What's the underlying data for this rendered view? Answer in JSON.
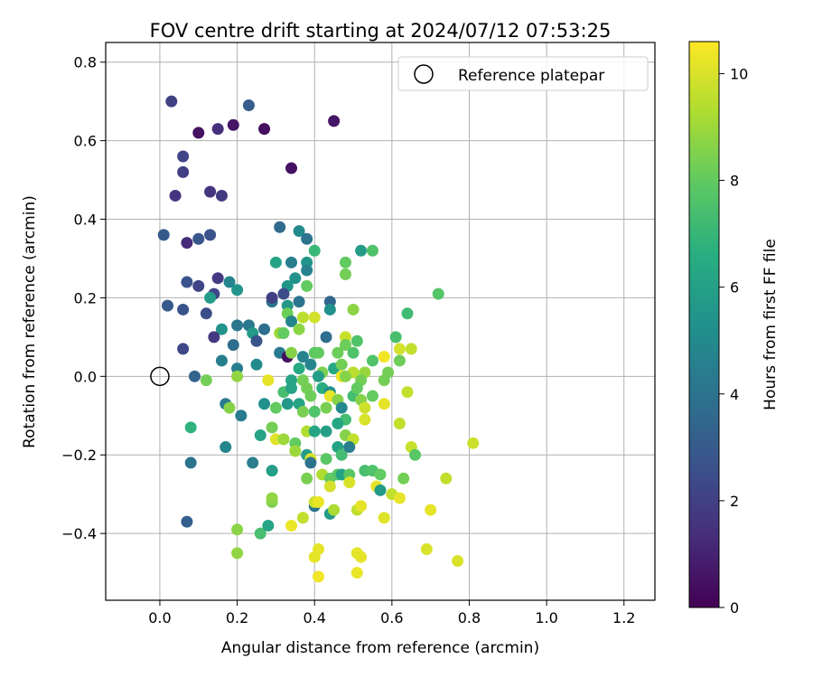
{
  "chart_data": {
    "type": "scatter",
    "title": "FOV centre drift starting at 2024/07/12 07:53:25",
    "xlabel": "Angular distance from reference (arcmin)",
    "ylabel": "Rotation from reference (arcmin)",
    "xlim": [
      -0.14,
      1.28
    ],
    "ylim": [
      -0.57,
      0.85
    ],
    "xticks": [
      "0.0",
      "0.2",
      "0.4",
      "0.6",
      "0.8",
      "1.0",
      "1.2"
    ],
    "xtick_values": [
      0.0,
      0.2,
      0.4,
      0.6,
      0.8,
      1.0,
      1.2
    ],
    "yticks": [
      "−0.4",
      "−0.2",
      "0.0",
      "0.2",
      "0.4",
      "0.6",
      "0.8"
    ],
    "ytick_values": [
      -0.4,
      -0.2,
      0.0,
      0.2,
      0.4,
      0.6,
      0.8
    ],
    "grid": true,
    "legend": {
      "placement": "upper-right",
      "entries": [
        "Reference platepar"
      ]
    },
    "reference_point": {
      "x": 0.0,
      "y": 0.0
    },
    "colorbar": {
      "label": "Hours from first FF file",
      "range": [
        0,
        10.6
      ],
      "ticks": [
        "0",
        "2",
        "4",
        "6",
        "8",
        "10"
      ],
      "tick_values": [
        0,
        2,
        4,
        6,
        8,
        10
      ],
      "colormap": "viridis"
    },
    "series": [
      {
        "points": [
          [
            0.03,
            0.7,
            2.0
          ],
          [
            0.1,
            0.62,
            0.5
          ],
          [
            0.15,
            0.63,
            1.4
          ],
          [
            0.19,
            0.64,
            0.6
          ],
          [
            0.23,
            0.69,
            3.1
          ],
          [
            0.27,
            0.63,
            0.4
          ],
          [
            0.45,
            0.65,
            0.6
          ],
          [
            0.06,
            0.56,
            2.2
          ],
          [
            0.06,
            0.52,
            2.0
          ],
          [
            0.04,
            0.46,
            1.6
          ],
          [
            0.13,
            0.47,
            1.6
          ],
          [
            0.16,
            0.46,
            1.8
          ],
          [
            0.34,
            0.53,
            0.5
          ],
          [
            0.01,
            0.36,
            3.0
          ],
          [
            0.07,
            0.34,
            1.3
          ],
          [
            0.1,
            0.35,
            2.9
          ],
          [
            0.13,
            0.36,
            2.7
          ],
          [
            0.31,
            0.38,
            3.7
          ],
          [
            0.36,
            0.37,
            5.0
          ],
          [
            0.38,
            0.35,
            4.0
          ],
          [
            0.52,
            0.32,
            5.8
          ],
          [
            0.55,
            0.32,
            7.6
          ],
          [
            0.4,
            0.32,
            7.1
          ],
          [
            0.3,
            0.29,
            6.1
          ],
          [
            0.34,
            0.29,
            4.5
          ],
          [
            0.38,
            0.29,
            5.5
          ],
          [
            0.48,
            0.29,
            8.0
          ],
          [
            0.07,
            0.24,
            2.7
          ],
          [
            0.1,
            0.23,
            2.2
          ],
          [
            0.15,
            0.25,
            1.8
          ],
          [
            0.18,
            0.24,
            4.8
          ],
          [
            0.2,
            0.22,
            5.5
          ],
          [
            0.14,
            0.21,
            2.2
          ],
          [
            0.13,
            0.2,
            5.8
          ],
          [
            0.33,
            0.23,
            5.5
          ],
          [
            0.35,
            0.25,
            5.3
          ],
          [
            0.38,
            0.27,
            4.7
          ],
          [
            0.38,
            0.23,
            8.0
          ],
          [
            0.48,
            0.26,
            8.3
          ],
          [
            0.72,
            0.21,
            7.7
          ],
          [
            0.02,
            0.18,
            3.0
          ],
          [
            0.06,
            0.17,
            2.7
          ],
          [
            0.12,
            0.16,
            2.5
          ],
          [
            0.29,
            0.19,
            4.2
          ],
          [
            0.29,
            0.2,
            2.0
          ],
          [
            0.32,
            0.21,
            2.5
          ],
          [
            0.33,
            0.18,
            5.6
          ],
          [
            0.36,
            0.19,
            4.0
          ],
          [
            0.44,
            0.19,
            3.5
          ],
          [
            0.44,
            0.17,
            5.3
          ],
          [
            0.5,
            0.17,
            8.7
          ],
          [
            0.64,
            0.16,
            7.2
          ],
          [
            0.33,
            0.16,
            8.2
          ],
          [
            0.34,
            0.14,
            4.8
          ],
          [
            0.37,
            0.15,
            9.5
          ],
          [
            0.4,
            0.15,
            9.9
          ],
          [
            0.16,
            0.12,
            5.4
          ],
          [
            0.2,
            0.13,
            4.2
          ],
          [
            0.23,
            0.13,
            4.2
          ],
          [
            0.27,
            0.12,
            3.8
          ],
          [
            0.31,
            0.11,
            9.0
          ],
          [
            0.24,
            0.11,
            5.7
          ],
          [
            0.25,
            0.09,
            2.7
          ],
          [
            0.32,
            0.11,
            8.0
          ],
          [
            0.36,
            0.12,
            8.7
          ],
          [
            0.43,
            0.1,
            3.8
          ],
          [
            0.48,
            0.1,
            9.7
          ],
          [
            0.48,
            0.08,
            8.2
          ],
          [
            0.51,
            0.09,
            7.6
          ],
          [
            0.61,
            0.1,
            7.4
          ],
          [
            0.62,
            0.07,
            9.9
          ],
          [
            0.65,
            0.07,
            9.6
          ],
          [
            0.06,
            0.07,
            2.3
          ],
          [
            0.14,
            0.1,
            1.8
          ],
          [
            0.19,
            0.08,
            3.8
          ],
          [
            0.31,
            0.06,
            4.3
          ],
          [
            0.33,
            0.05,
            0.5
          ],
          [
            0.34,
            0.06,
            8.6
          ],
          [
            0.37,
            0.05,
            4.7
          ],
          [
            0.4,
            0.06,
            7.9
          ],
          [
            0.41,
            0.06,
            8.0
          ],
          [
            0.46,
            0.06,
            8.2
          ],
          [
            0.5,
            0.06,
            7.6
          ],
          [
            0.58,
            0.05,
            10.4
          ],
          [
            0.55,
            0.04,
            7.6
          ],
          [
            0.62,
            0.04,
            8.2
          ],
          [
            0.16,
            0.04,
            4.5
          ],
          [
            0.2,
            0.02,
            4.5
          ],
          [
            0.25,
            0.03,
            5.0
          ],
          [
            0.36,
            0.02,
            6.4
          ],
          [
            0.39,
            0.03,
            4.8
          ],
          [
            0.42,
            0.01,
            8.4
          ],
          [
            0.45,
            0.02,
            6.3
          ],
          [
            0.47,
            0.03,
            8.3
          ],
          [
            0.5,
            0.01,
            9.5
          ],
          [
            0.53,
            0.01,
            8.9
          ],
          [
            0.59,
            0.01,
            8.3
          ],
          [
            0.09,
            0.0,
            3.4
          ],
          [
            0.12,
            -0.01,
            8.3
          ],
          [
            0.2,
            0.0,
            8.8
          ],
          [
            0.28,
            -0.01,
            10.2
          ],
          [
            0.34,
            -0.01,
            6.2
          ],
          [
            0.37,
            -0.01,
            8.3
          ],
          [
            0.41,
            0.0,
            5.8
          ],
          [
            0.47,
            0.0,
            10.3
          ],
          [
            0.48,
            0.0,
            8.6
          ],
          [
            0.52,
            -0.01,
            8.3
          ],
          [
            0.58,
            -0.01,
            8.3
          ],
          [
            0.17,
            -0.07,
            4.3
          ],
          [
            0.21,
            -0.1,
            4.4
          ],
          [
            0.18,
            -0.08,
            8.6
          ],
          [
            0.27,
            -0.07,
            5.3
          ],
          [
            0.32,
            -0.04,
            7.4
          ],
          [
            0.34,
            -0.03,
            6.1
          ],
          [
            0.38,
            -0.03,
            8.3
          ],
          [
            0.39,
            -0.05,
            8.2
          ],
          [
            0.42,
            -0.03,
            6.6
          ],
          [
            0.44,
            -0.04,
            5.2
          ],
          [
            0.44,
            -0.05,
            10.2
          ],
          [
            0.46,
            -0.06,
            8.6
          ],
          [
            0.5,
            -0.05,
            7.3
          ],
          [
            0.51,
            -0.03,
            8.0
          ],
          [
            0.52,
            -0.06,
            8.6
          ],
          [
            0.55,
            -0.05,
            8.0
          ],
          [
            0.58,
            -0.07,
            10.2
          ],
          [
            0.64,
            -0.04,
            9.6
          ],
          [
            0.08,
            -0.13,
            6.8
          ],
          [
            0.3,
            -0.08,
            8.0
          ],
          [
            0.33,
            -0.07,
            5.6
          ],
          [
            0.36,
            -0.07,
            6.1
          ],
          [
            0.37,
            -0.09,
            8.4
          ],
          [
            0.4,
            -0.09,
            7.6
          ],
          [
            0.43,
            -0.08,
            8.4
          ],
          [
            0.47,
            -0.08,
            4.9
          ],
          [
            0.48,
            -0.11,
            7.3
          ],
          [
            0.46,
            -0.12,
            6.3
          ],
          [
            0.53,
            -0.08,
            9.8
          ],
          [
            0.53,
            -0.11,
            10.0
          ],
          [
            0.62,
            -0.12,
            9.6
          ],
          [
            0.26,
            -0.15,
            6.1
          ],
          [
            0.29,
            -0.13,
            8.3
          ],
          [
            0.3,
            -0.16,
            10.1
          ],
          [
            0.32,
            -0.16,
            9.0
          ],
          [
            0.35,
            -0.17,
            8.0
          ],
          [
            0.38,
            -0.14,
            9.3
          ],
          [
            0.4,
            -0.14,
            6.2
          ],
          [
            0.43,
            -0.14,
            6.0
          ],
          [
            0.48,
            -0.15,
            8.6
          ],
          [
            0.5,
            -0.16,
            9.6
          ],
          [
            0.08,
            -0.22,
            4.0
          ],
          [
            0.17,
            -0.18,
            4.8
          ],
          [
            0.24,
            -0.22,
            4.5
          ],
          [
            0.29,
            -0.24,
            5.9
          ],
          [
            0.35,
            -0.19,
            9.0
          ],
          [
            0.38,
            -0.2,
            5.8
          ],
          [
            0.39,
            -0.21,
            10.0
          ],
          [
            0.39,
            -0.22,
            4.0
          ],
          [
            0.43,
            -0.21,
            7.8
          ],
          [
            0.46,
            -0.18,
            6.1
          ],
          [
            0.47,
            -0.2,
            7.3
          ],
          [
            0.49,
            -0.18,
            4.5
          ],
          [
            0.65,
            -0.18,
            9.7
          ],
          [
            0.66,
            -0.2,
            7.8
          ],
          [
            0.81,
            -0.17,
            9.8
          ],
          [
            0.38,
            -0.26,
            8.4
          ],
          [
            0.42,
            -0.25,
            9.3
          ],
          [
            0.44,
            -0.26,
            8.0
          ],
          [
            0.46,
            -0.25,
            7.8
          ],
          [
            0.47,
            -0.25,
            6.1
          ],
          [
            0.49,
            -0.25,
            7.8
          ],
          [
            0.53,
            -0.24,
            7.4
          ],
          [
            0.55,
            -0.24,
            7.6
          ],
          [
            0.57,
            -0.25,
            8.0
          ],
          [
            0.63,
            -0.26,
            8.3
          ],
          [
            0.74,
            -0.26,
            9.6
          ],
          [
            0.44,
            -0.28,
            9.9
          ],
          [
            0.49,
            -0.27,
            10.0
          ],
          [
            0.56,
            -0.28,
            10.2
          ],
          [
            0.57,
            -0.29,
            5.7
          ],
          [
            0.6,
            -0.3,
            9.6
          ],
          [
            0.62,
            -0.31,
            10.2
          ],
          [
            0.29,
            -0.32,
            8.5
          ],
          [
            0.29,
            -0.31,
            8.8
          ],
          [
            0.4,
            -0.33,
            4.0
          ],
          [
            0.4,
            -0.32,
            9.8
          ],
          [
            0.41,
            -0.32,
            10.3
          ],
          [
            0.44,
            -0.35,
            5.6
          ],
          [
            0.45,
            -0.34,
            9.2
          ],
          [
            0.51,
            -0.34,
            9.6
          ],
          [
            0.52,
            -0.33,
            10.2
          ],
          [
            0.07,
            -0.37,
            3.2
          ],
          [
            0.2,
            -0.39,
            8.7
          ],
          [
            0.26,
            -0.4,
            7.4
          ],
          [
            0.28,
            -0.38,
            6.2
          ],
          [
            0.34,
            -0.38,
            10.3
          ],
          [
            0.37,
            -0.36,
            9.6
          ],
          [
            0.58,
            -0.36,
            10.1
          ],
          [
            0.7,
            -0.34,
            10.2
          ],
          [
            0.2,
            -0.45,
            8.8
          ],
          [
            0.4,
            -0.46,
            10.2
          ],
          [
            0.41,
            -0.44,
            10.2
          ],
          [
            0.51,
            -0.45,
            10.2
          ],
          [
            0.52,
            -0.46,
            10.2
          ],
          [
            0.69,
            -0.44,
            10.0
          ],
          [
            0.77,
            -0.47,
            10.0
          ],
          [
            0.41,
            -0.51,
            10.4
          ],
          [
            0.51,
            -0.5,
            10.3
          ]
        ]
      }
    ]
  }
}
